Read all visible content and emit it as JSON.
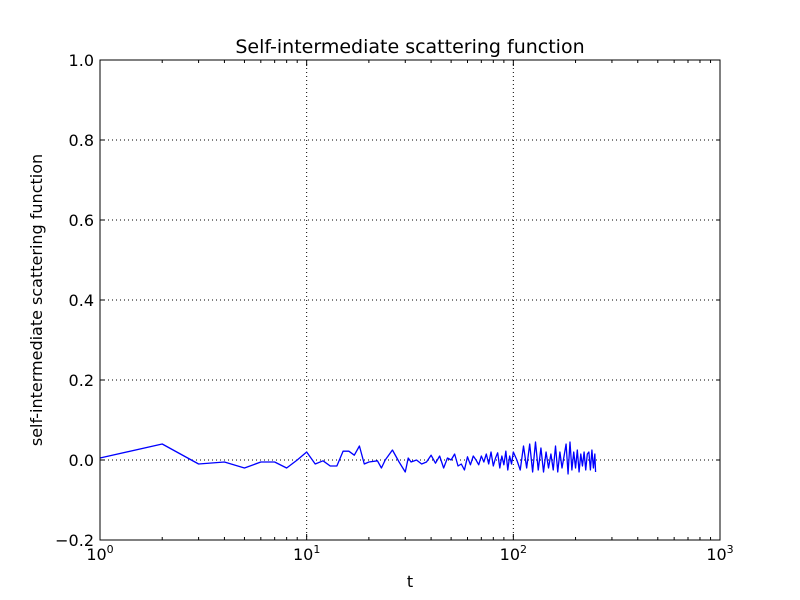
{
  "chart_data": {
    "type": "line",
    "title": "Self-intermediate scattering function",
    "xlabel": "t",
    "ylabel": "self-intermediate scattering function",
    "xscale": "log",
    "xlim": [
      1,
      1000
    ],
    "ylim": [
      -0.2,
      1.0
    ],
    "x_ticks": [
      {
        "value": 1,
        "base": "10",
        "exp": "0"
      },
      {
        "value": 10,
        "base": "10",
        "exp": "1"
      },
      {
        "value": 100,
        "base": "10",
        "exp": "2"
      },
      {
        "value": 1000,
        "base": "10",
        "exp": "3"
      }
    ],
    "y_ticks": [
      {
        "value": -0.2,
        "label": "−0.2"
      },
      {
        "value": 0.0,
        "label": "0.0"
      },
      {
        "value": 0.2,
        "label": "0.2"
      },
      {
        "value": 0.4,
        "label": "0.4"
      },
      {
        "value": 0.6,
        "label": "0.6"
      },
      {
        "value": 0.8,
        "label": "0.8"
      },
      {
        "value": 1.0,
        "label": "1.0"
      }
    ],
    "grid": true,
    "series": [
      {
        "color": "#0000ff",
        "x": [
          1,
          2,
          3,
          4,
          5,
          6,
          7,
          8,
          9,
          10,
          11,
          12,
          13,
          14,
          15,
          16,
          17,
          18,
          19,
          20,
          22,
          23,
          24,
          26,
          28,
          30,
          31,
          32,
          34,
          36,
          38,
          40,
          42,
          44,
          46,
          48,
          50,
          52,
          54,
          56,
          58,
          60,
          62,
          64,
          66,
          68,
          70,
          72,
          74,
          76,
          78,
          80,
          82,
          84,
          86,
          88,
          90,
          92,
          94,
          96,
          98,
          100,
          104,
          108,
          112,
          116,
          120,
          124,
          128,
          132,
          136,
          140,
          144,
          148,
          152,
          156,
          160,
          164,
          168,
          172,
          176,
          180,
          184,
          188,
          192,
          196,
          200,
          204,
          208,
          212,
          216,
          220,
          224,
          228,
          232,
          236,
          240,
          244,
          248,
          250
        ],
        "y": [
          0.005,
          0.04,
          -0.01,
          -0.005,
          -0.02,
          -0.005,
          -0.005,
          -0.02,
          0.0,
          0.02,
          -0.01,
          -0.002,
          -0.015,
          -0.015,
          0.022,
          0.022,
          0.012,
          0.035,
          -0.01,
          -0.005,
          -0.002,
          -0.02,
          0.0,
          0.025,
          -0.005,
          -0.03,
          0.005,
          -0.005,
          0.0,
          -0.01,
          -0.005,
          0.012,
          -0.008,
          0.01,
          -0.02,
          0.005,
          0.0,
          0.015,
          -0.015,
          -0.01,
          -0.025,
          0.008,
          -0.012,
          0.01,
          0.0,
          -0.012,
          0.01,
          -0.005,
          0.015,
          -0.01,
          0.02,
          -0.015,
          0.005,
          0.018,
          -0.02,
          0.01,
          -0.012,
          0.022,
          -0.025,
          0.01,
          -0.01,
          0.02,
          0.0,
          -0.025,
          0.035,
          -0.02,
          0.04,
          -0.03,
          0.045,
          -0.025,
          0.03,
          -0.03,
          0.02,
          -0.02,
          0.015,
          -0.025,
          0.035,
          -0.03,
          0.02,
          -0.02,
          0.01,
          0.04,
          -0.035,
          0.045,
          -0.025,
          0.02,
          -0.02,
          0.025,
          -0.03,
          0.015,
          -0.015,
          0.02,
          -0.025,
          0.015,
          0.02,
          -0.025,
          0.025,
          -0.02,
          0.015,
          -0.03
        ]
      }
    ]
  }
}
